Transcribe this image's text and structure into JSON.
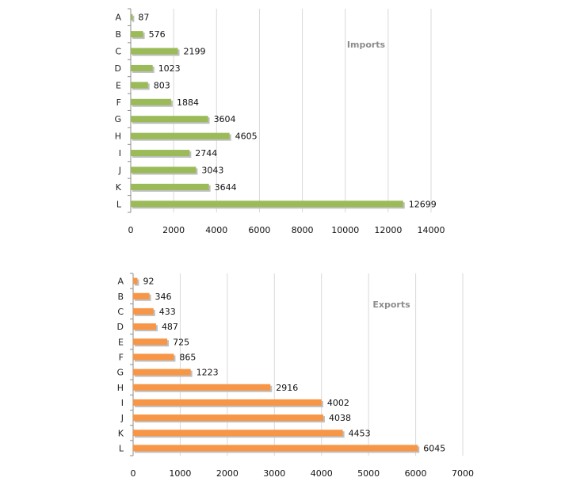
{
  "colors": {
    "imports_bar": "#9bbb59",
    "exports_bar": "#f79646",
    "shadow": "#bfbfbf"
  },
  "chart_data": [
    {
      "type": "bar",
      "orientation": "horizontal",
      "title": "Imports",
      "categories": [
        "A",
        "B",
        "C",
        "D",
        "E",
        "F",
        "G",
        "H",
        "I",
        "J",
        "K",
        "L"
      ],
      "values": [
        87,
        576,
        2199,
        1023,
        803,
        1884,
        3604,
        4605,
        2744,
        3043,
        3644,
        12699
      ],
      "xlim": [
        0,
        14000
      ],
      "xticks": [
        0,
        2000,
        4000,
        6000,
        8000,
        10000,
        12000,
        14000
      ],
      "grid": true,
      "data_labels": true
    },
    {
      "type": "bar",
      "orientation": "horizontal",
      "title": "Exports",
      "categories": [
        "A",
        "B",
        "C",
        "D",
        "E",
        "F",
        "G",
        "H",
        "I",
        "J",
        "K",
        "L"
      ],
      "values": [
        92,
        346,
        433,
        487,
        725,
        865,
        1223,
        2916,
        4002,
        4038,
        4453,
        6045
      ],
      "xlim": [
        0,
        7000
      ],
      "xticks": [
        0,
        1000,
        2000,
        3000,
        4000,
        5000,
        6000,
        7000
      ],
      "grid": true,
      "data_labels": true
    }
  ]
}
